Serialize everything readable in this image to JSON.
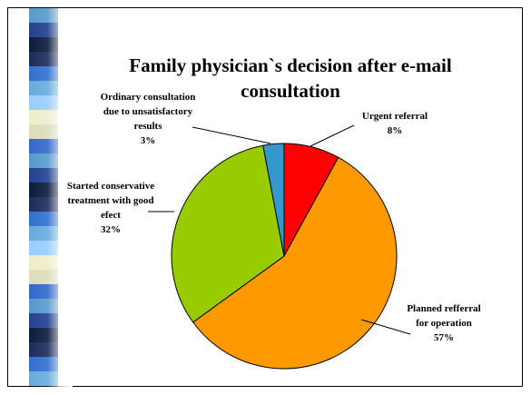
{
  "chart_data": {
    "type": "pie",
    "title": "Family physician`s decision after e-mail consultation",
    "categories": [
      "Urgent referral",
      "Planned refferral for operation",
      "Started conservative treatment with good efect",
      "Ordinary consultation due to unsatisfactory results"
    ],
    "values": [
      8,
      57,
      32,
      3
    ],
    "value_labels": [
      "8%",
      "57%",
      "32%",
      "3%"
    ],
    "colors": [
      "#ff0000",
      "#ff9900",
      "#99cc00",
      "#3399cc"
    ]
  }
}
